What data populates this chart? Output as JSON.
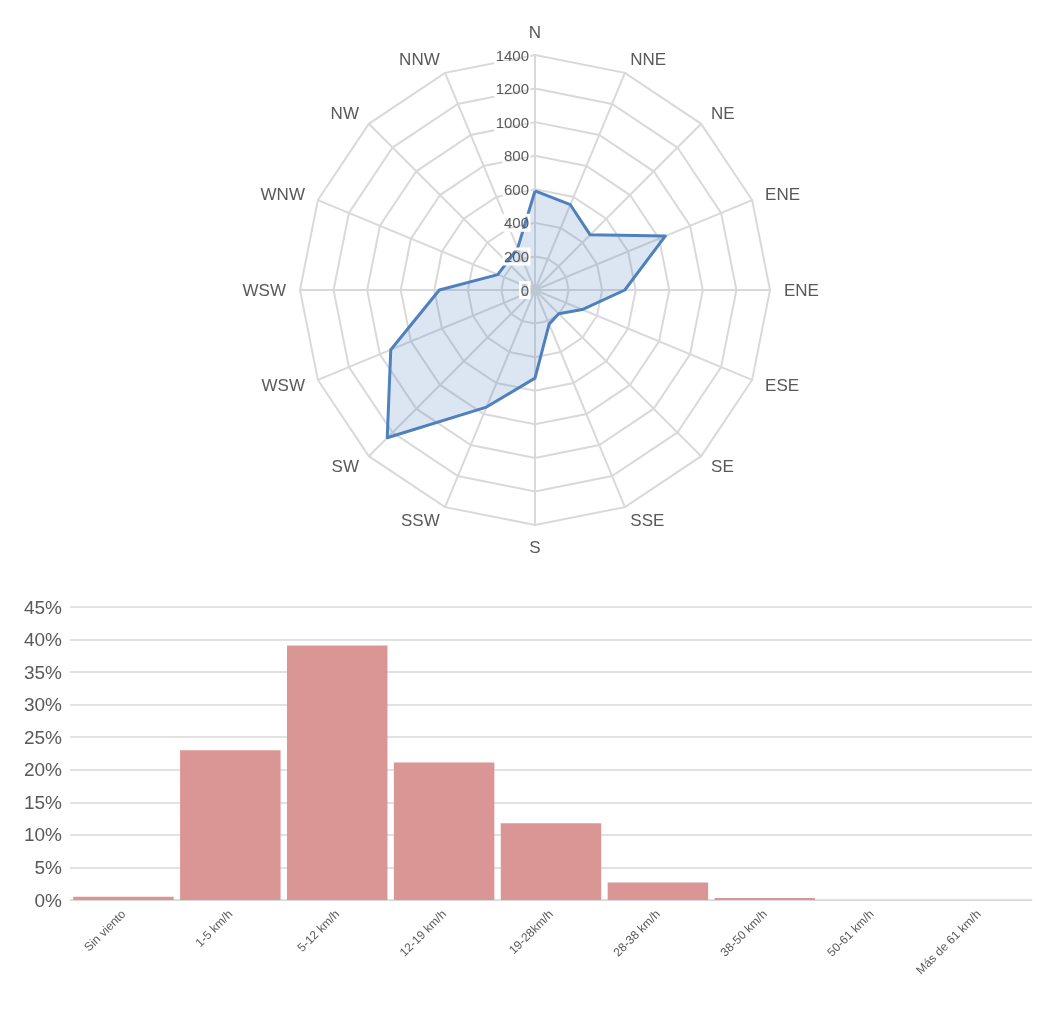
{
  "chart_data": [
    {
      "type": "radar",
      "categories": [
        "N",
        "NNE",
        "NE",
        "ENE",
        "ENE",
        "ESE",
        "SE",
        "SSE",
        "S",
        "SSW",
        "SW",
        "WSW",
        "WSW",
        "WNW",
        "NW",
        "NNW"
      ],
      "series": [
        {
          "color": "#4f81bd",
          "values": [
            590,
            550,
            465,
            840,
            535,
            305,
            200,
            220,
            525,
            755,
            1245,
            930,
            570,
            240,
            235,
            270
          ]
        }
      ],
      "ylim": [
        0,
        1400
      ],
      "yticks": [
        0,
        200,
        400,
        600,
        800,
        1000,
        1200,
        1400
      ],
      "grid": true,
      "marker": "none"
    },
    {
      "type": "bar",
      "categories": [
        "Sin viento",
        "1-5 km/h",
        "5-12 km/h",
        "12-19 km/h",
        "19-28km/h",
        "28-38 km/h",
        "38-50 km/h",
        "50-61 km/h",
        "Más de 61 km/h"
      ],
      "values": [
        0.5,
        23.0,
        39.1,
        21.1,
        11.8,
        2.7,
        0.3,
        0,
        0
      ],
      "color": "#d99694",
      "ylim": [
        0,
        45
      ],
      "yticks": [
        {
          "value": 0,
          "label": "0%"
        },
        {
          "value": 5,
          "label": "5%"
        },
        {
          "value": 10,
          "label": "10%"
        },
        {
          "value": 15,
          "label": "15%"
        },
        {
          "value": 20,
          "label": "20%"
        },
        {
          "value": 25,
          "label": "25%"
        },
        {
          "value": 30,
          "label": "30%"
        },
        {
          "value": 35,
          "label": "35%"
        },
        {
          "value": 40,
          "label": "40%"
        },
        {
          "value": 45,
          "label": "45%"
        }
      ],
      "grid": "y"
    }
  ]
}
